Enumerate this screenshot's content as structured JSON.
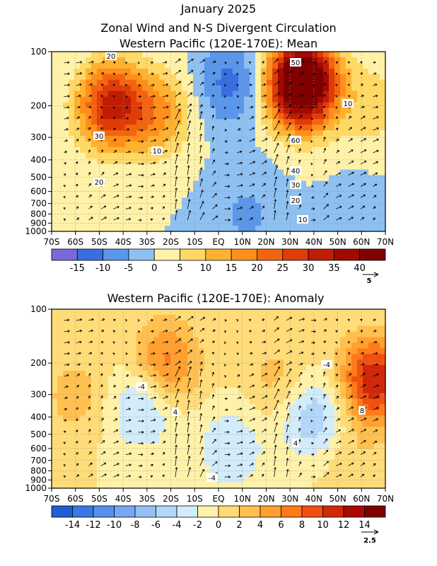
{
  "title_lines": [
    "January 2025",
    "Zonal Wind and N-S Divergent Circulation"
  ],
  "chart_data": [
    {
      "type": "heatmap",
      "title": "Western Pacific (120E-170E): Mean",
      "x_ticks": [
        "70S",
        "60S",
        "50S",
        "40S",
        "30S",
        "20S",
        "10S",
        "EQ",
        "10N",
        "20N",
        "30N",
        "40N",
        "50N",
        "60N",
        "70N"
      ],
      "y_ticks": [
        "100",
        "200",
        "300",
        "400",
        "500",
        "600",
        "700",
        "800",
        "900",
        "1000"
      ],
      "y_tick_values": [
        100,
        200,
        300,
        400,
        500,
        600,
        700,
        800,
        900,
        1000
      ],
      "x_range": [
        -70,
        70
      ],
      "y_range": [
        100,
        1000
      ],
      "y_scale": "log",
      "grid": true,
      "colorbar": {
        "labels": [
          "-15",
          "-10",
          "-5",
          "0",
          "5",
          "10",
          "15",
          "20",
          "25",
          "30",
          "35",
          "40"
        ],
        "levels": [
          -20,
          -15,
          -10,
          -5,
          0,
          5,
          10,
          15,
          20,
          25,
          30,
          35,
          40,
          45
        ],
        "colors": [
          "#7b68d8",
          "#3a6ee0",
          "#5a96ea",
          "#8ec0f2",
          "#fff2a8",
          "#ffd866",
          "#ffb232",
          "#ff8f1a",
          "#f46410",
          "#e03c08",
          "#c01c04",
          "#a00a00",
          "#800000"
        ]
      },
      "vector_ref": "5",
      "contour_labels": [
        "20",
        "30",
        "20",
        "10",
        "50",
        "10",
        "60",
        "40",
        "30",
        "20",
        "10"
      ],
      "features": [
        {
          "x": -45,
          "p": 200,
          "value": 32
        },
        {
          "x": 35,
          "p": 150,
          "value": 60
        },
        {
          "x": 5,
          "p": 150,
          "value": -12
        },
        {
          "x": 12,
          "p": 800,
          "value": -6
        },
        {
          "x": 65,
          "p": 200,
          "value": 8
        },
        {
          "x": -25,
          "p": 220,
          "value": 15
        },
        {
          "x": 60,
          "p": 900,
          "value": -3
        }
      ]
    },
    {
      "type": "heatmap",
      "title": "Western Pacific (120E-170E): Anomaly",
      "x_ticks": [
        "70S",
        "60S",
        "50S",
        "40S",
        "30S",
        "20S",
        "10S",
        "EQ",
        "10N",
        "20N",
        "30N",
        "40N",
        "50N",
        "60N",
        "70N"
      ],
      "y_ticks": [
        "100",
        "200",
        "300",
        "400",
        "500",
        "600",
        "700",
        "800",
        "900",
        "1000"
      ],
      "y_tick_values": [
        100,
        200,
        300,
        400,
        500,
        600,
        700,
        800,
        900,
        1000
      ],
      "x_range": [
        -70,
        70
      ],
      "y_range": [
        100,
        1000
      ],
      "y_scale": "log",
      "grid": true,
      "colorbar": {
        "labels": [
          "-14",
          "-12",
          "-10",
          "-8",
          "-6",
          "-4",
          "-2",
          "0",
          "2",
          "4",
          "6",
          "8",
          "10",
          "12",
          "14"
        ],
        "levels": [
          -16,
          -14,
          -12,
          -10,
          -8,
          -6,
          -4,
          -2,
          0,
          2,
          4,
          6,
          8,
          10,
          12,
          14,
          16
        ],
        "colors": [
          "#1f5fd0",
          "#3a78e0",
          "#5a90ea",
          "#78a8f0",
          "#96c0f4",
          "#b4d6f8",
          "#d2ecfa",
          "#fff2a8",
          "#ffdc78",
          "#ffc050",
          "#ffa030",
          "#ff7a1a",
          "#f05010",
          "#d02808",
          "#a80a00",
          "#800000"
        ]
      },
      "vector_ref": "2.5",
      "contour_labels": [
        "-4",
        "4",
        "-4",
        "8",
        "4",
        "-4"
      ],
      "features": [
        {
          "x": -22,
          "p": 200,
          "value": 7
        },
        {
          "x": -32,
          "p": 350,
          "value": -5
        },
        {
          "x": 40,
          "p": 400,
          "value": -6
        },
        {
          "x": 65,
          "p": 250,
          "value": 12
        },
        {
          "x": 5,
          "p": 600,
          "value": -4
        },
        {
          "x": -60,
          "p": 300,
          "value": 3
        },
        {
          "x": 25,
          "p": 250,
          "value": 3
        },
        {
          "x": 55,
          "p": 700,
          "value": 2
        }
      ]
    }
  ]
}
